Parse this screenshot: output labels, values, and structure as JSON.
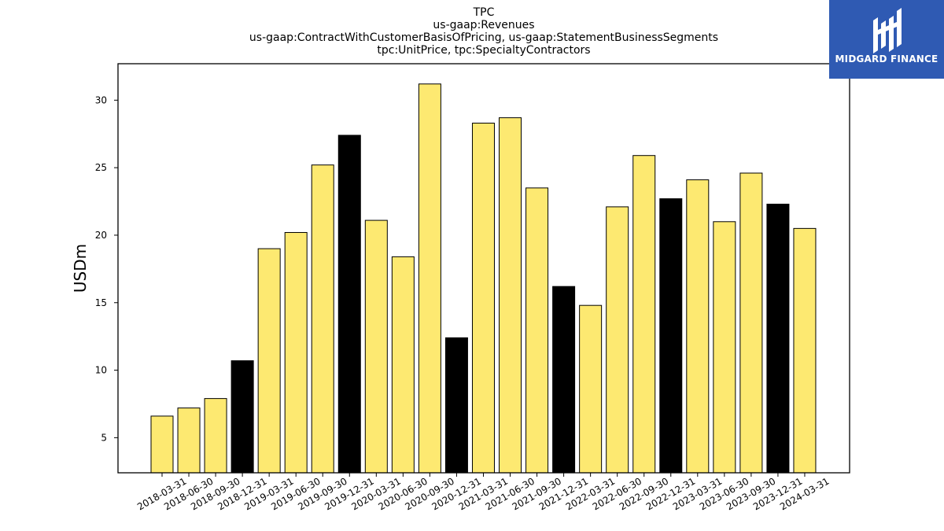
{
  "chart_data": {
    "type": "bar",
    "title_lines": [
      "TPC",
      "us-gaap:Revenues",
      "us-gaap:ContractWithCustomerBasisOfPricing, us-gaap:StatementBusinessSegments",
      "tpc:UnitPrice, tpc:SpecialtyContractors"
    ],
    "ylabel": "USDm",
    "xlabel": "",
    "ylim": [
      2.4,
      32.7
    ],
    "yticks": [
      5,
      10,
      15,
      20,
      25,
      30
    ],
    "grid": false,
    "colors": {
      "quarter": "#fde971",
      "year_end": "#000000"
    },
    "categories": [
      "2018-03-31",
      "2018-06-30",
      "2018-09-30",
      "2018-12-31",
      "2019-03-31",
      "2019-06-30",
      "2019-09-30",
      "2019-12-31",
      "2020-03-31",
      "2020-06-30",
      "2020-09-30",
      "2020-12-31",
      "2021-03-31",
      "2021-06-30",
      "2021-09-30",
      "2021-12-31",
      "2022-03-31",
      "2022-06-30",
      "2022-09-30",
      "2022-12-31",
      "2023-03-31",
      "2023-06-30",
      "2023-09-30",
      "2023-12-31",
      "2024-03-31"
    ],
    "values": [
      6.6,
      7.2,
      7.9,
      10.7,
      19.0,
      20.2,
      25.2,
      27.4,
      21.1,
      18.4,
      31.2,
      12.4,
      28.3,
      28.7,
      23.5,
      16.2,
      14.8,
      22.1,
      25.9,
      22.7,
      24.1,
      21.0,
      24.6,
      22.3,
      20.5
    ]
  },
  "logo": {
    "text": "MIDGARD FINANCE"
  }
}
